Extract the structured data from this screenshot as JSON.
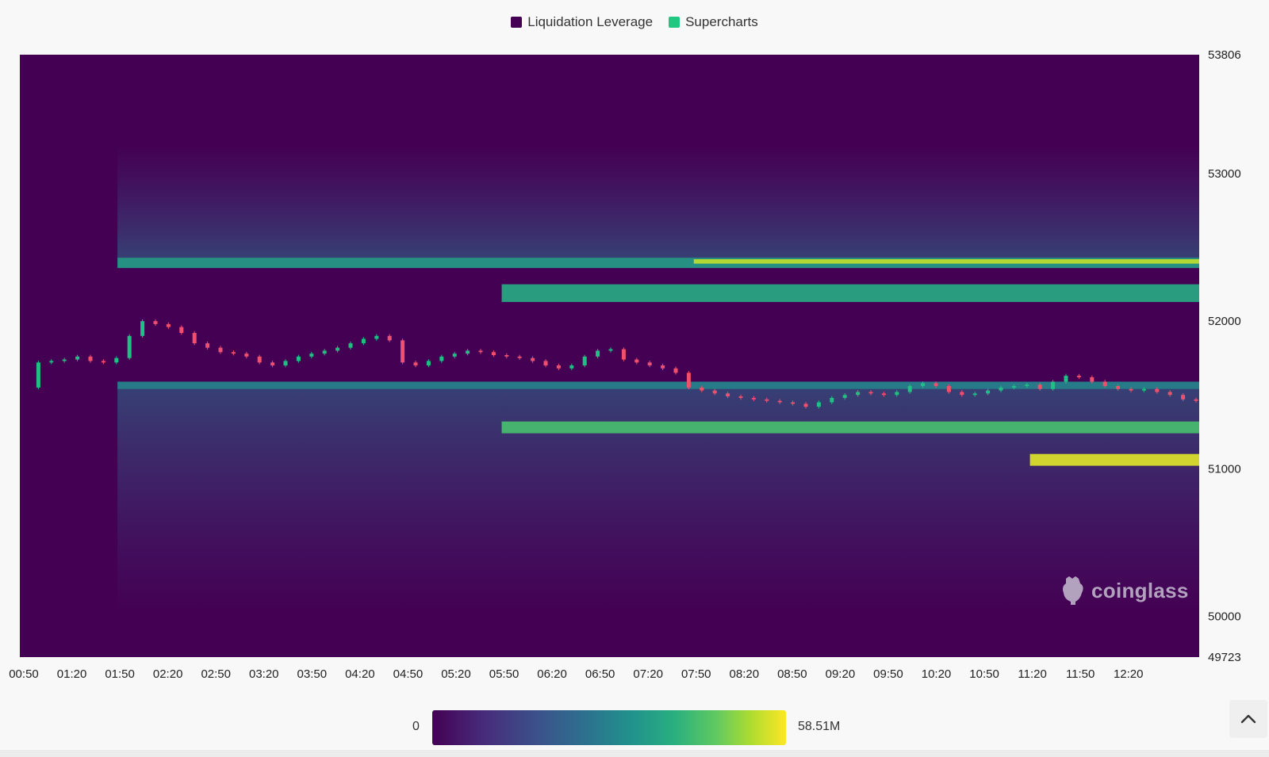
{
  "legend": [
    {
      "label": "Liquidation Leverage",
      "color": "#440154"
    },
    {
      "label": "Supercharts",
      "color": "#1ec880"
    }
  ],
  "chart_data": {
    "type": "heatmap",
    "x_ticks": [
      "00:50",
      "01:20",
      "01:50",
      "02:20",
      "02:50",
      "03:20",
      "03:50",
      "04:20",
      "04:50",
      "05:20",
      "05:50",
      "06:20",
      "06:50",
      "07:20",
      "07:50",
      "08:20",
      "08:50",
      "09:20",
      "09:50",
      "10:20",
      "10:50",
      "11:20",
      "11:50",
      "12:20"
    ],
    "y_ticks": [
      53806,
      53000,
      52000,
      51000,
      50000,
      49723
    ],
    "ylim": [
      49723,
      53806
    ],
    "colorscale": {
      "min_label": "0",
      "max_label": "58.51M",
      "min": 0,
      "max": 58510000
    },
    "candle_colors": {
      "up": "#1fc084",
      "down": "#f0506e"
    },
    "price_series": [
      51550,
      51720,
      51730,
      51740,
      51760,
      51730,
      51720,
      51750,
      51900,
      52000,
      51980,
      51960,
      51920,
      51850,
      51820,
      51790,
      51780,
      51760,
      51720,
      51700,
      51730,
      51760,
      51780,
      51800,
      51820,
      51850,
      51880,
      51900,
      51870,
      51720,
      51700,
      51730,
      51760,
      51780,
      51800,
      51790,
      51770,
      51760,
      51750,
      51730,
      51700,
      51680,
      51700,
      51760,
      51800,
      51810,
      51740,
      51720,
      51700,
      51680,
      51650,
      51550,
      51530,
      51510,
      51490,
      51480,
      51470,
      51460,
      51450,
      51440,
      51420,
      51450,
      51480,
      51500,
      51520,
      51510,
      51500,
      51520,
      51560,
      51580,
      51560,
      51520,
      51500,
      51510,
      51530,
      51550,
      51560,
      51570,
      51540,
      51590,
      51630,
      51620,
      51590,
      51560,
      51540,
      51530,
      51540,
      51520,
      51500,
      51470,
      51460
    ],
    "liquidation_bands": [
      {
        "price_from": 52360,
        "price_to": 52430,
        "from_time": "01:50",
        "to_time": "12:50",
        "intensity": 0.55
      },
      {
        "price_from": 52390,
        "price_to": 52420,
        "from_time": "07:50",
        "to_time": "12:50",
        "intensity": 0.9
      },
      {
        "price_from": 52130,
        "price_to": 52250,
        "from_time": "05:50",
        "to_time": "12:50",
        "intensity": 0.6
      },
      {
        "price_from": 51540,
        "price_to": 51590,
        "from_time": "01:50",
        "to_time": "12:50",
        "intensity": 0.45
      },
      {
        "price_from": 51240,
        "price_to": 51320,
        "from_time": "05:50",
        "to_time": "12:50",
        "intensity": 0.7
      },
      {
        "price_from": 51020,
        "price_to": 51100,
        "from_time": "11:20",
        "to_time": "12:50",
        "intensity": 0.95
      }
    ]
  },
  "color_scale": {
    "min_label": "0",
    "max_label": "58.51M"
  },
  "watermark": "coinglass"
}
